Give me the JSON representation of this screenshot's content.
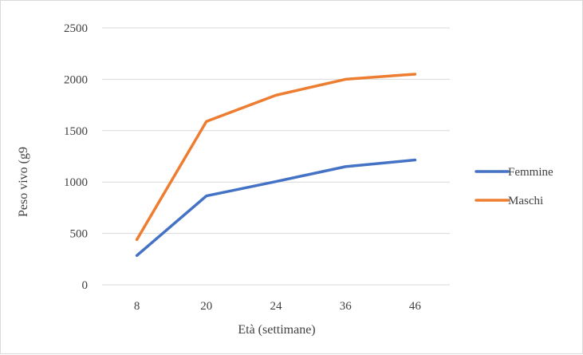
{
  "chart_data": {
    "type": "line",
    "title": "",
    "xlabel": "Età (settimane)",
    "ylabel": "Peso vivo (g9",
    "categories": [
      "8",
      "20",
      "24",
      "36",
      "46"
    ],
    "ylim": [
      0,
      2500
    ],
    "yticks": [
      0,
      500,
      1000,
      1500,
      2000,
      2500
    ],
    "grid": "horizontal",
    "legend_position": "right",
    "series": [
      {
        "name": "Femmine",
        "color": "#4472c4",
        "values": [
          285,
          865,
          1005,
          1150,
          1215
        ]
      },
      {
        "name": "Maschi",
        "color": "#ed7d31",
        "values": [
          440,
          1590,
          1845,
          2000,
          2050
        ]
      }
    ]
  }
}
